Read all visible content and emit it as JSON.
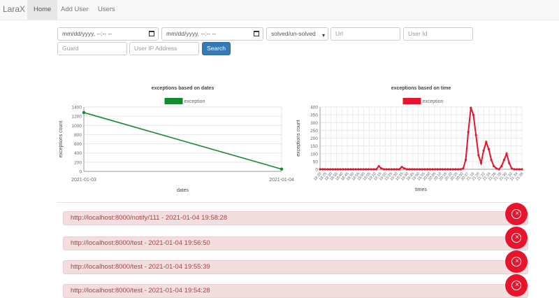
{
  "nav": {
    "brand": "LaraX",
    "links": [
      {
        "label": "Home",
        "active": true
      },
      {
        "label": "Add User",
        "active": false
      },
      {
        "label": "Users",
        "active": false
      }
    ]
  },
  "filters": {
    "date_from_value": "mm/dd/yyyy, --:-- --",
    "date_to_value": "mm/dd/yyyy, --:-- --",
    "status_selected": "solved/un-solved",
    "url_placeholder": "Url",
    "user_id_placeholder": "User Id",
    "guard_placeholder": "Guard",
    "ip_placeholder": "User IP Address",
    "search_label": "Search"
  },
  "colors": {
    "dates_series": "#138a2c",
    "time_series": "#e8132d",
    "alert_bg": "#f2dede",
    "alert_text": "#a94442",
    "close_button": "#e8132d",
    "primary": "#337ab7"
  },
  "chart_data": [
    {
      "type": "line",
      "title": "exceptions based on dates",
      "xlabel": "dates",
      "ylabel": "exceptions count",
      "legend": "top",
      "grid": true,
      "x": [
        "2021-01-03",
        "2021-01-04"
      ],
      "ylim": [
        0,
        1400
      ],
      "yticks": [
        0,
        200,
        400,
        600,
        800,
        1000,
        1200,
        1400
      ],
      "series": [
        {
          "name": "exception",
          "values": [
            1280,
            50
          ]
        }
      ]
    },
    {
      "type": "line",
      "title": "exceptions based on time",
      "xlabel": "times",
      "ylabel": "exceptions count",
      "legend": "top",
      "grid": true,
      "ylim": [
        0,
        400
      ],
      "yticks": [
        0,
        50,
        100,
        150,
        200,
        250,
        300,
        350,
        400
      ],
      "x": [
        "18:20",
        "18:23",
        "18:26",
        "18:29",
        "18:32",
        "18:35",
        "18:38",
        "18:41",
        "18:44",
        "18:47",
        "18:50",
        "18:53",
        "18:56",
        "18:59",
        "19:02",
        "19:05",
        "19:08",
        "19:11",
        "19:14",
        "19:17",
        "19:20",
        "19:23",
        "19:26",
        "19:29",
        "19:32",
        "19:35",
        "19:38",
        "19:41",
        "19:44",
        "19:47",
        "19:50",
        "19:53",
        "19:56",
        "19:59",
        "20:02",
        "20:05",
        "20:08",
        "20:11",
        "20:14",
        "20:17",
        "20:20",
        "20:23",
        "20:26",
        "20:29",
        "20:32",
        "20:35",
        "20:38",
        "20:41",
        "20:44",
        "20:47",
        "20:50",
        "20:53",
        "20:56",
        "20:59",
        "21:02",
        "21:05",
        "21:08",
        "21:11",
        "21:14",
        "21:17",
        "21:20",
        "21:23",
        "21:26",
        "21:29",
        "21:32",
        "21:35",
        "21:38",
        "21:41",
        "21:44",
        "21:47",
        "21:50",
        "21:53",
        "21:56",
        "21:59",
        "22:02",
        "22:05",
        "22:08",
        "22:11",
        "22:14",
        "22:17"
      ],
      "tick_labels": [
        "18:20",
        "18:25",
        "18:30",
        "18:35",
        "18:40",
        "18:45",
        "18:50",
        "18:55",
        "19:00",
        "19:05",
        "19:10",
        "19:15",
        "19:20",
        "19:25",
        "19:30",
        "19:35",
        "19:40",
        "19:45",
        "19:50",
        "19:55",
        "20:00",
        "20:05",
        "20:10",
        "20:15",
        "20:20",
        "20:25",
        "20:30",
        "20:37",
        "21:18",
        "21:20",
        "21:22",
        "21:24",
        "21:26",
        "21:28",
        "21:30",
        "21:32",
        "21:34",
        "21:36"
      ],
      "series": [
        {
          "name": "exception",
          "values": [
            0,
            0,
            0,
            0,
            0,
            0,
            0,
            0,
            0,
            0,
            0,
            0,
            0,
            0,
            0,
            0,
            0,
            0,
            0,
            0,
            0,
            0,
            0,
            20,
            5,
            0,
            0,
            0,
            0,
            0,
            0,
            0,
            15,
            5,
            0,
            0,
            0,
            0,
            0,
            0,
            0,
            0,
            0,
            0,
            0,
            0,
            0,
            0,
            0,
            0,
            0,
            0,
            0,
            0,
            0,
            0,
            5,
            60,
            240,
            395,
            350,
            220,
            90,
            40,
            120,
            175,
            130,
            60,
            20,
            5,
            0,
            20,
            60,
            100,
            40,
            5,
            0,
            0,
            0,
            0
          ]
        }
      ]
    }
  ],
  "exceptions": [
    {
      "text": "http://localhost:8000/notify/111 - 2021-01-04 19:58:28"
    },
    {
      "text": "http://localhost:8000/test - 2021-01-04 19:56:50"
    },
    {
      "text": "http://localhost:8000/test - 2021-01-04 19:55:39"
    },
    {
      "text": "http://localhost:8000/test - 2021-01-04 19:54:28"
    }
  ]
}
